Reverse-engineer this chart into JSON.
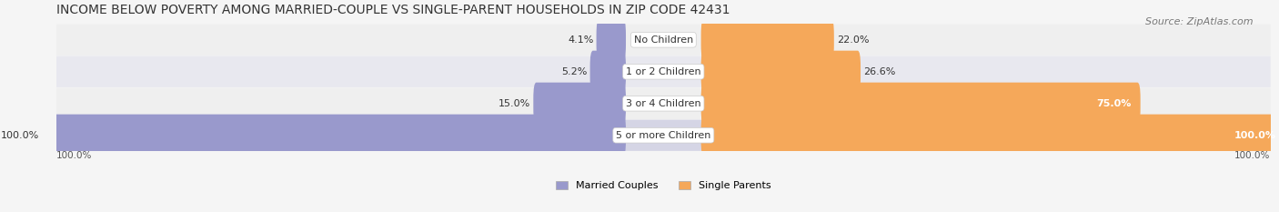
{
  "title": "INCOME BELOW POVERTY AMONG MARRIED-COUPLE VS SINGLE-PARENT HOUSEHOLDS IN ZIP CODE 42431",
  "source": "Source: ZipAtlas.com",
  "categories": [
    "No Children",
    "1 or 2 Children",
    "3 or 4 Children",
    "5 or more Children"
  ],
  "married_values": [
    4.1,
    5.2,
    15.0,
    100.0
  ],
  "single_values": [
    22.0,
    26.6,
    75.0,
    100.0
  ],
  "married_color": "#9999cc",
  "single_color": "#f5a85a",
  "bar_bg_color": "#e8e8ee",
  "row_bg_colors": [
    "#efefef",
    "#e8e8ee",
    "#efefef",
    "#d8d8e8"
  ],
  "title_fontsize": 10,
  "source_fontsize": 8,
  "label_fontsize": 8,
  "bar_label_fontsize": 8,
  "max_value": 100.0,
  "bar_height": 0.32,
  "figsize": [
    14.06,
    2.33
  ],
  "dpi": 100
}
